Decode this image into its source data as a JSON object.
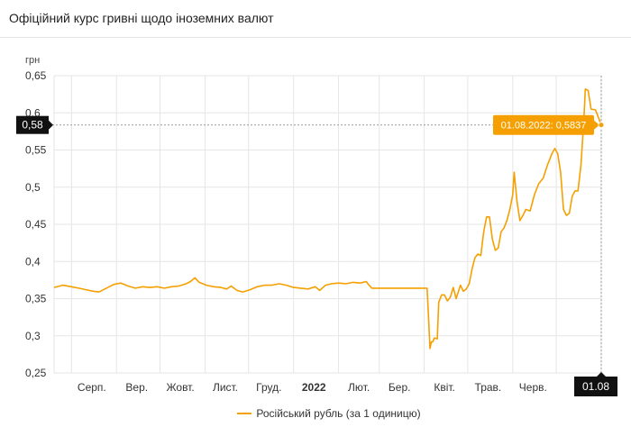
{
  "header": {
    "title": "Офіційний курс гривні щодо іноземних валют"
  },
  "colors": {
    "series": "#f5a000",
    "grid": "#e6e6e6",
    "crosshair": "#999999",
    "axis_badge_bg": "#111111",
    "tooltip_bg": "#f5a000"
  },
  "chart_data": {
    "type": "line",
    "title": "",
    "xlabel": "",
    "ylabel": "грн",
    "ylim": [
      0.25,
      0.65
    ],
    "y_ticks": [
      "0,25",
      "0,3",
      "0,35",
      "0,4",
      "0,45",
      "0,5",
      "0,55",
      "0,6",
      "0,65"
    ],
    "x_tick_labels": [
      "Серп.",
      "Вер.",
      "Жовт.",
      "Лист.",
      "Груд.",
      "2022",
      "Лют.",
      "Бер.",
      "Квіт.",
      "Трав.",
      "Черв.",
      "01.08"
    ],
    "x_range": [
      "2021-07-20",
      "2022-08-01"
    ],
    "grid": true,
    "legend_position": "bottom",
    "series": [
      {
        "name": "Російський рубль (за 1 одиницю)",
        "points": [
          [
            "2021-07-20",
            0.365
          ],
          [
            "2021-07-26",
            0.368
          ],
          [
            "2021-08-01",
            0.366
          ],
          [
            "2021-08-06",
            0.364
          ],
          [
            "2021-08-11",
            0.362
          ],
          [
            "2021-08-16",
            0.36
          ],
          [
            "2021-08-20",
            0.359
          ],
          [
            "2021-08-25",
            0.364
          ],
          [
            "2021-08-30",
            0.369
          ],
          [
            "2021-09-04",
            0.371
          ],
          [
            "2021-09-09",
            0.367
          ],
          [
            "2021-09-14",
            0.364
          ],
          [
            "2021-09-19",
            0.366
          ],
          [
            "2021-09-24",
            0.365
          ],
          [
            "2021-09-29",
            0.366
          ],
          [
            "2021-10-04",
            0.364
          ],
          [
            "2021-10-09",
            0.366
          ],
          [
            "2021-10-14",
            0.367
          ],
          [
            "2021-10-19",
            0.37
          ],
          [
            "2021-10-22",
            0.373
          ],
          [
            "2021-10-25",
            0.378
          ],
          [
            "2021-10-28",
            0.372
          ],
          [
            "2021-11-02",
            0.368
          ],
          [
            "2021-11-07",
            0.366
          ],
          [
            "2021-11-12",
            0.365
          ],
          [
            "2021-11-16",
            0.363
          ],
          [
            "2021-11-19",
            0.367
          ],
          [
            "2021-11-23",
            0.361
          ],
          [
            "2021-11-27",
            0.359
          ],
          [
            "2021-12-02",
            0.362
          ],
          [
            "2021-12-07",
            0.366
          ],
          [
            "2021-12-12",
            0.368
          ],
          [
            "2021-12-17",
            0.368
          ],
          [
            "2021-12-22",
            0.37
          ],
          [
            "2021-12-27",
            0.368
          ],
          [
            "2022-01-01",
            0.365
          ],
          [
            "2022-01-06",
            0.364
          ],
          [
            "2022-01-11",
            0.363
          ],
          [
            "2022-01-16",
            0.366
          ],
          [
            "2022-01-19",
            0.361
          ],
          [
            "2022-01-23",
            0.368
          ],
          [
            "2022-01-27",
            0.37
          ],
          [
            "2022-02-01",
            0.371
          ],
          [
            "2022-02-06",
            0.37
          ],
          [
            "2022-02-11",
            0.372
          ],
          [
            "2022-02-16",
            0.371
          ],
          [
            "2022-02-20",
            0.373
          ],
          [
            "2022-02-22",
            0.368
          ],
          [
            "2022-02-24",
            0.364
          ],
          [
            "2022-03-10",
            0.364
          ],
          [
            "2022-03-20",
            0.364
          ],
          [
            "2022-03-30",
            0.364
          ],
          [
            "2022-04-03",
            0.364
          ],
          [
            "2022-04-04",
            0.325
          ],
          [
            "2022-04-05",
            0.283
          ],
          [
            "2022-04-06",
            0.292
          ],
          [
            "2022-04-07",
            0.292
          ],
          [
            "2022-04-08",
            0.297
          ],
          [
            "2022-04-10",
            0.296
          ],
          [
            "2022-04-11",
            0.345
          ],
          [
            "2022-04-13",
            0.355
          ],
          [
            "2022-04-15",
            0.355
          ],
          [
            "2022-04-17",
            0.347
          ],
          [
            "2022-04-19",
            0.352
          ],
          [
            "2022-04-21",
            0.365
          ],
          [
            "2022-04-23",
            0.35
          ],
          [
            "2022-04-26",
            0.368
          ],
          [
            "2022-04-28",
            0.36
          ],
          [
            "2022-04-30",
            0.363
          ],
          [
            "2022-05-02",
            0.37
          ],
          [
            "2022-05-04",
            0.39
          ],
          [
            "2022-05-06",
            0.405
          ],
          [
            "2022-05-08",
            0.41
          ],
          [
            "2022-05-10",
            0.408
          ],
          [
            "2022-05-12",
            0.44
          ],
          [
            "2022-05-14",
            0.46
          ],
          [
            "2022-05-16",
            0.46
          ],
          [
            "2022-05-18",
            0.43
          ],
          [
            "2022-05-20",
            0.415
          ],
          [
            "2022-05-22",
            0.418
          ],
          [
            "2022-05-24",
            0.44
          ],
          [
            "2022-05-26",
            0.445
          ],
          [
            "2022-05-28",
            0.455
          ],
          [
            "2022-05-30",
            0.47
          ],
          [
            "2022-06-01",
            0.49
          ],
          [
            "2022-06-02",
            0.52
          ],
          [
            "2022-06-04",
            0.48
          ],
          [
            "2022-06-06",
            0.455
          ],
          [
            "2022-06-08",
            0.462
          ],
          [
            "2022-06-10",
            0.47
          ],
          [
            "2022-06-13",
            0.468
          ],
          [
            "2022-06-16",
            0.49
          ],
          [
            "2022-06-19",
            0.505
          ],
          [
            "2022-06-22",
            0.512
          ],
          [
            "2022-06-25",
            0.53
          ],
          [
            "2022-06-28",
            0.545
          ],
          [
            "2022-06-30",
            0.552
          ],
          [
            "2022-07-02",
            0.545
          ],
          [
            "2022-07-04",
            0.52
          ],
          [
            "2022-07-06",
            0.47
          ],
          [
            "2022-07-08",
            0.462
          ],
          [
            "2022-07-10",
            0.465
          ],
          [
            "2022-07-12",
            0.488
          ],
          [
            "2022-07-14",
            0.495
          ],
          [
            "2022-07-16",
            0.495
          ],
          [
            "2022-07-18",
            0.53
          ],
          [
            "2022-07-20",
            0.59
          ],
          [
            "2022-07-21",
            0.632
          ],
          [
            "2022-07-23",
            0.63
          ],
          [
            "2022-07-25",
            0.605
          ],
          [
            "2022-07-28",
            0.604
          ],
          [
            "2022-08-01",
            0.5837
          ]
        ]
      }
    ]
  },
  "crosshair": {
    "y_badge": "0,58",
    "x_badge": "01.08"
  },
  "tooltip": {
    "text": "01.08.2022: 0,5837"
  },
  "legend": {
    "label": "Російський рубль (за 1 одиницю)"
  }
}
